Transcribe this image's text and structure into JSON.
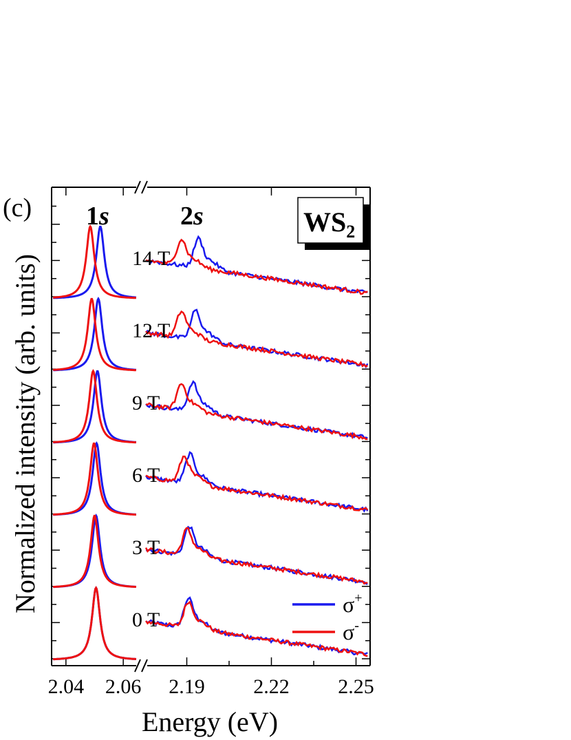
{
  "panel_label": "(c)",
  "chart_data": {
    "type": "line",
    "title": "",
    "xlabel": "Energy (eV)",
    "ylabel": "Normalized intensity (arb. units)",
    "sample_label": {
      "main": "WS",
      "sub": "2",
      "color": "#1a8a1a"
    },
    "region_labels": [
      {
        "main": "1",
        "italic": "s"
      },
      {
        "main": "2",
        "italic": "s"
      }
    ],
    "x_ranges": [
      {
        "name": "1s",
        "xlim": [
          2.035,
          2.065
        ],
        "ticks": [
          2.04,
          2.06
        ],
        "tick_labels": [
          "2.04",
          "2.06"
        ]
      },
      {
        "name": "2s",
        "xlim": [
          2.175,
          2.255
        ],
        "ticks": [
          2.19,
          2.22,
          2.25
        ],
        "tick_labels": [
          "2.19",
          "2.22",
          "2.25"
        ]
      }
    ],
    "axis_break": true,
    "grid": false,
    "legend": {
      "placement": "bottom-right",
      "entries": [
        {
          "label": "σ",
          "sup": "+",
          "color": "#1a1aee"
        },
        {
          "label": "σ",
          "sup": "-",
          "color": "#ee1111"
        }
      ]
    },
    "series": [
      {
        "field": "0 T",
        "offset_index": 0,
        "s1_peak_sigma_plus": 2.0505,
        "s1_peak_sigma_minus": 2.0505,
        "s2_peak_sigma_plus": 2.1905,
        "s2_peak_sigma_minus": 2.1905
      },
      {
        "field": "3 T",
        "offset_index": 1,
        "s1_peak_sigma_plus": 2.0505,
        "s1_peak_sigma_minus": 2.05,
        "s2_peak_sigma_plus": 2.1907,
        "s2_peak_sigma_minus": 2.19
      },
      {
        "field": "6 T",
        "offset_index": 2,
        "s1_peak_sigma_plus": 2.0507,
        "s1_peak_sigma_minus": 2.0498,
        "s2_peak_sigma_plus": 2.191,
        "s2_peak_sigma_minus": 2.189
      },
      {
        "field": "9 T",
        "offset_index": 3,
        "s1_peak_sigma_plus": 2.051,
        "s1_peak_sigma_minus": 2.0495,
        "s2_peak_sigma_plus": 2.192,
        "s2_peak_sigma_minus": 2.188
      },
      {
        "field": "12 T",
        "offset_index": 4,
        "s1_peak_sigma_plus": 2.0513,
        "s1_peak_sigma_minus": 2.049,
        "s2_peak_sigma_plus": 2.193,
        "s2_peak_sigma_minus": 2.188
      },
      {
        "field": "14 T",
        "offset_index": 5,
        "s1_peak_sigma_plus": 2.052,
        "s1_peak_sigma_minus": 2.0485,
        "s2_peak_sigma_plus": 2.194,
        "s2_peak_sigma_minus": 2.188
      }
    ]
  }
}
